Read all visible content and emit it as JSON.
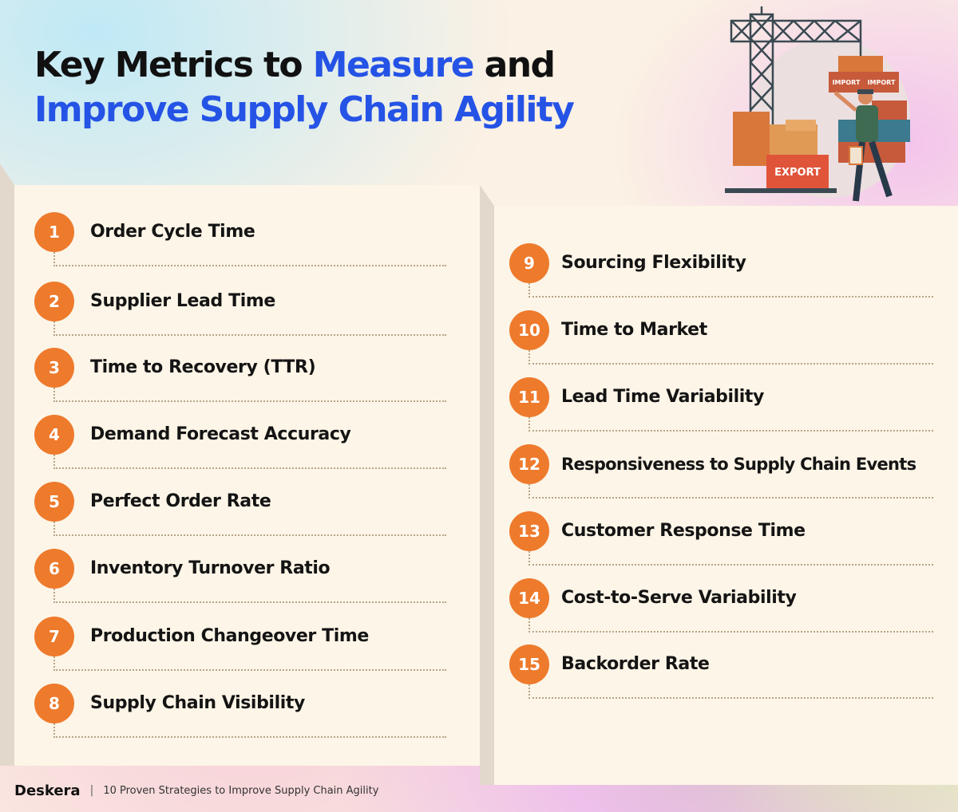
{
  "title": {
    "line1_part1": "Key Metrics to ",
    "line1_highlight": "Measure",
    "line1_part2": " and",
    "line2": "Improve Supply Chain Agility"
  },
  "illustration": {
    "import_label_1": "IMPORT",
    "import_label_2": "IMPORT",
    "export_label": "EXPORT"
  },
  "left_metrics": [
    {
      "number": "1",
      "label": "Order Cycle Time"
    },
    {
      "number": "2",
      "label": "Supplier Lead Time"
    },
    {
      "number": "3",
      "label": "Time to Recovery (TTR)"
    },
    {
      "number": "4",
      "label": "Demand Forecast Accuracy"
    },
    {
      "number": "5",
      "label": "Perfect Order Rate"
    },
    {
      "number": "6",
      "label": "Inventory Turnover Ratio"
    },
    {
      "number": "7",
      "label": "Production Changeover Time"
    },
    {
      "number": "8",
      "label": "Supply Chain Visibility"
    }
  ],
  "right_metrics": [
    {
      "number": "9",
      "label": "Sourcing Flexibility"
    },
    {
      "number": "10",
      "label": "Time to Market"
    },
    {
      "number": "11",
      "label": "Lead Time Variability"
    },
    {
      "number": "12",
      "label": "Responsiveness to Supply Chain Events"
    },
    {
      "number": "13",
      "label": "Customer Response Time"
    },
    {
      "number": "14",
      "label": "Cost-to-Serve Variability"
    },
    {
      "number": "15",
      "label": "Backorder Rate"
    }
  ],
  "footer": {
    "brand": "Deskera",
    "separator": "|",
    "tagline": "10 Proven Strategies to Improve Supply Chain Agility"
  },
  "colors": {
    "accent": "#ee7a2c",
    "highlight": "#2553e6",
    "panel": "#fdf5e7"
  }
}
